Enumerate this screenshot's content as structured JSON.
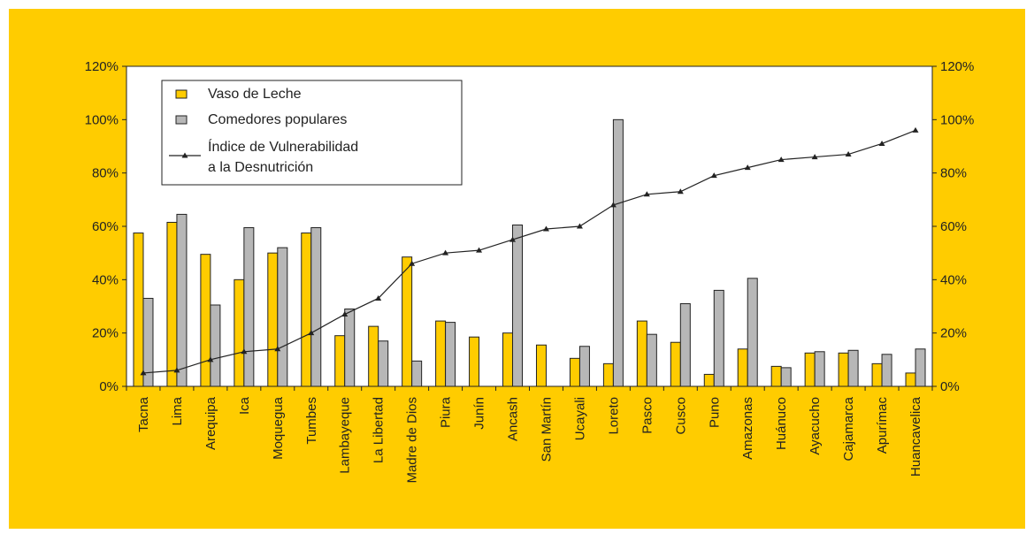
{
  "colors": {
    "background": "#FFCC00",
    "plot_area": "#FFFFFF",
    "vaso_de_leche": "#FFCC00",
    "comedores_populares": "#B7B7B7",
    "line": "#222222"
  },
  "chart_data": {
    "type": "bar",
    "title": "",
    "xlabel": "",
    "ylabel": "",
    "ylim": [
      0,
      120
    ],
    "yticks": [
      "0%",
      "20%",
      "40%",
      "60%",
      "80%",
      "100%",
      "120%"
    ],
    "y2ticks": [
      "0%",
      "20%",
      "40%",
      "60%",
      "80%",
      "100%",
      "120%"
    ],
    "grid": false,
    "legend_position": "top-left",
    "categories": [
      "Tacna",
      "Lima",
      "Arequipa",
      "Ica",
      "Moquegua",
      "Tumbes",
      "Lambayeque",
      "La Libertad",
      "Madre de Dios",
      "Piura",
      "Junín",
      "Ancash",
      "San Martín",
      "Ucayali",
      "Loreto",
      "Pasco",
      "Cusco",
      "Puno",
      "Amazonas",
      "Huánuco",
      "Ayacucho",
      "Cajamarca",
      "Apurímac",
      "Huancavelica"
    ],
    "series": [
      {
        "name": "Vaso de Leche",
        "type": "bar",
        "values": [
          57.5,
          61.5,
          49.5,
          40,
          50,
          57.5,
          19,
          22.5,
          48.5,
          24.5,
          18.5,
          20,
          15.5,
          10.5,
          8.5,
          24.5,
          16.5,
          4.5,
          14,
          7.5,
          12.5,
          12.5,
          8.5,
          5
        ]
      },
      {
        "name": "Comedores populares",
        "type": "bar",
        "values": [
          33,
          64.5,
          30.5,
          59.5,
          52,
          59.5,
          29,
          17,
          9.5,
          24,
          0,
          60.5,
          0,
          15,
          100,
          19.5,
          31,
          36,
          40.5,
          7,
          13,
          13.5,
          12,
          14
        ]
      },
      {
        "name": "Índice de Vulnerabilidad a la Desnutrición",
        "name_lines": [
          "Índice de Vulnerabilidad",
          "a la Desnutrición"
        ],
        "type": "line",
        "values": [
          5,
          6,
          10,
          13,
          14,
          20,
          27,
          33,
          46,
          50,
          51,
          55,
          59,
          60,
          68,
          72,
          73,
          79,
          82,
          85,
          86,
          87,
          91,
          96
        ]
      }
    ]
  }
}
